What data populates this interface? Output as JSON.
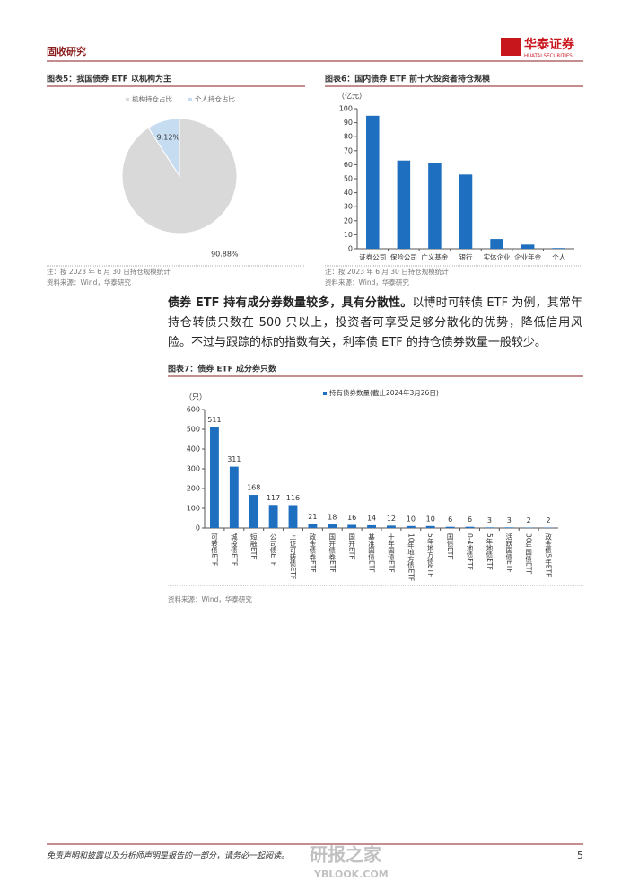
{
  "header": {
    "section": "固收研究",
    "logo_cn": "华泰证券",
    "logo_en": "HUATAI SECURITIES"
  },
  "paragraph": {
    "bold": "债券 ETF 持有成分券数量较多，具有分散性。",
    "text": "以博时可转债 ETF 为例，其常年持仓转债只数在 500 只以上，投资者可享受足够分散化的优势，降低信用风险。不过与跟踪的标的指数有关，利率债 ETF 的持仓债券数量一般较少。"
  },
  "notes": {
    "fig5_note": "注：按 2023 年 6 月 30 日持仓规模统计",
    "fig5_source": "资料来源：Wind，华泰研究",
    "fig6_note": "注：按 2023 年 6 月 30 日持仓规模统计",
    "fig6_source": "资料来源：Wind，华泰研究",
    "fig7_source": "资料来源：Wind，华泰研究"
  },
  "footer": {
    "disclaimer": "免责声明和披露以及分析师声明是报告的一部分，请务必一起阅读。",
    "page": "5",
    "watermark": "研报之家",
    "watermark_url": "YBLOOK.COM"
  },
  "chart_data": [
    {
      "type": "pie",
      "title": "图表5：我国债券 ETF 以机构为主",
      "categories": [
        "机构持仓占比",
        "个人持仓占比"
      ],
      "values": [
        90.88,
        9.12
      ],
      "value_labels": [
        "90.88%",
        "9.12%"
      ],
      "colors": [
        "#d9d9d9",
        "#c6dcf1"
      ],
      "legend": "top"
    },
    {
      "type": "bar",
      "title": "图表6：国内债券 ETF 前十大投资者持仓规模",
      "y_label": "（亿元）",
      "categories": [
        "证券公司",
        "保险公司",
        "广义基金",
        "银行",
        "实体企业",
        "企业年金",
        "个人"
      ],
      "values": [
        95,
        63,
        61,
        53,
        7,
        3,
        0.5
      ],
      "color": "#1f6fc0",
      "ylim": [
        0,
        100
      ],
      "yticks": [
        0,
        10,
        20,
        30,
        40,
        50,
        60,
        70,
        80,
        90,
        100
      ]
    },
    {
      "type": "bar",
      "title": "图表7：债券 ETF 成分券只数",
      "y_label": "（只）",
      "categories": [
        "可转债ETF",
        "城投债ETF",
        "短融ETF",
        "公司债ETF",
        "上证可转债ETF",
        "政金债券ETF",
        "国开债券ETF",
        "国开ETF",
        "基准国债ETF",
        "十年国债ETF",
        "10年地方债ETF",
        "5年地方债ETF",
        "国债ETF",
        "0-4地债ETF",
        "5年地债ETF",
        "活跃国债ETF",
        "30年国债ETF",
        "政金债5年ETF"
      ],
      "series": [
        {
          "name": "持有债券数量(截止2024年3月26日)",
          "color": "#1f6fc0",
          "values": [
            511,
            311,
            168,
            117,
            116,
            21,
            18,
            16,
            14,
            12,
            10,
            10,
            6,
            6,
            3,
            3,
            2,
            2
          ]
        }
      ],
      "ylim": [
        0,
        600
      ],
      "yticks": [
        0,
        100,
        200,
        300,
        400,
        500,
        600
      ],
      "show_values": true,
      "legend": "top"
    }
  ]
}
